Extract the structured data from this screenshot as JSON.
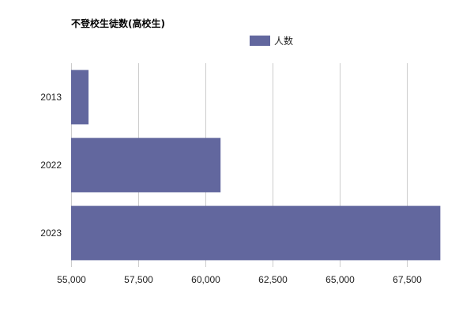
{
  "chart_data": {
    "type": "bar",
    "orientation": "horizontal",
    "title": "不登校生徒数(高校生)",
    "categories": [
      "2013",
      "2022",
      "2023"
    ],
    "series": [
      {
        "name": "人数",
        "values": [
          55650,
          60570,
          68760
        ],
        "color": "#62679e"
      }
    ],
    "xlim": [
      55000,
      70000
    ],
    "x_ticks": [
      55000,
      57500,
      60000,
      62500,
      65000,
      67500,
      70000
    ],
    "x_tick_labels": [
      "55,000",
      "57,500",
      "60,000",
      "62,500",
      "65,000",
      "67,500",
      ""
    ],
    "xlabel": "",
    "ylabel": "",
    "grid": "vertical",
    "grid_color": "#cccccc",
    "legend_position": "top"
  }
}
